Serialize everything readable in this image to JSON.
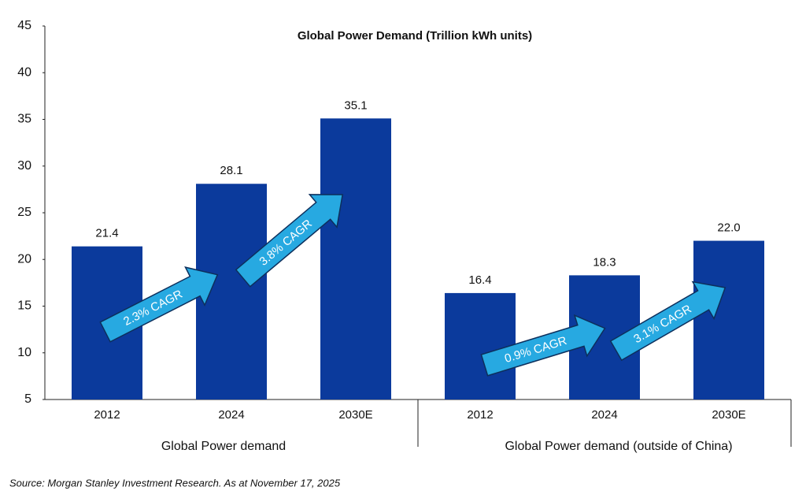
{
  "chart_data": {
    "type": "bar",
    "title": "Global Power Demand (Trillion kWh units)",
    "categories": [
      "2012",
      "2024",
      "2030E",
      "2012",
      "2024",
      "2030E"
    ],
    "groups": [
      "Global Power demand",
      "Global Power demand (outside of China)"
    ],
    "values": [
      21.4,
      28.1,
      35.1,
      16.4,
      18.3,
      22.0
    ],
    "value_labels": [
      "21.4",
      "28.1",
      "35.1",
      "16.4",
      "18.3",
      "22.0"
    ],
    "color": "#0b3a9c",
    "ylim": [
      5,
      45
    ],
    "yticks": [
      5,
      10,
      15,
      20,
      25,
      30,
      35,
      40,
      45
    ],
    "annotations": [
      "2.3% CAGR",
      "3.8% CAGR",
      "0.9% CAGR",
      "3.1% CAGR"
    ],
    "annotation_color": "#27a9e1",
    "source": "Source: Morgan Stanley Investment Research. As at November 17, 2025"
  }
}
